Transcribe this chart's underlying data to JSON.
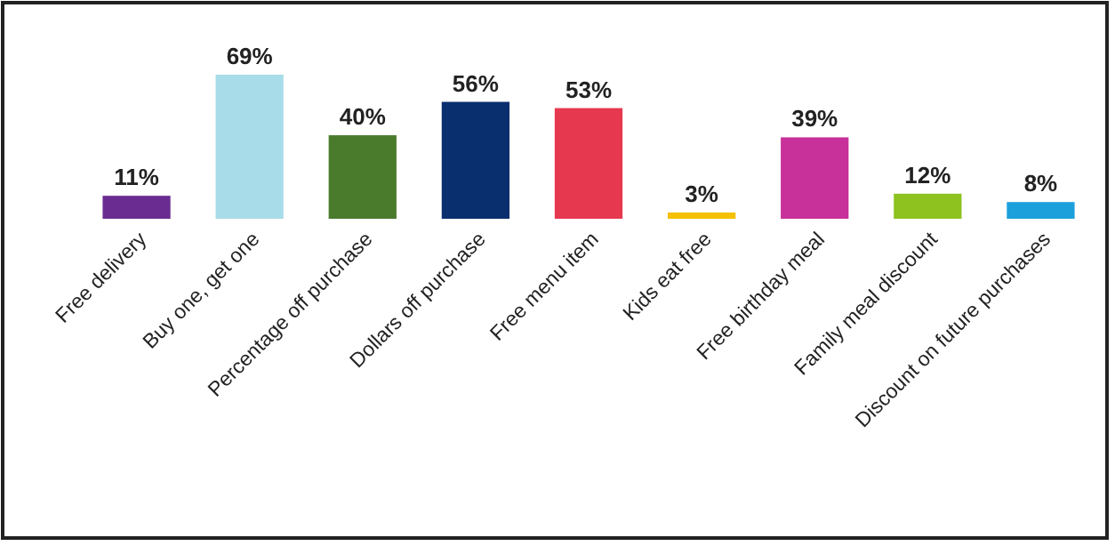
{
  "chart_data": {
    "type": "bar",
    "categories": [
      "Free delivery",
      "Buy one, get one",
      "Percentage off purchase",
      "Dollars off purchase",
      "Free menu item",
      "Kids eat free",
      "Free birthday meal",
      "Family meal discount",
      "Discount on future purchases"
    ],
    "values": [
      11,
      69,
      40,
      56,
      53,
      3,
      39,
      12,
      8
    ],
    "colors": [
      "#6a2c91",
      "#a8dce8",
      "#4a7a2c",
      "#0a2f6e",
      "#e63950",
      "#f5c000",
      "#c8309a",
      "#8dc21f",
      "#1ca0dc"
    ],
    "value_labels": [
      "11%",
      "69%",
      "40%",
      "56%",
      "53%",
      "3%",
      "39%",
      "12%",
      "8%"
    ]
  }
}
